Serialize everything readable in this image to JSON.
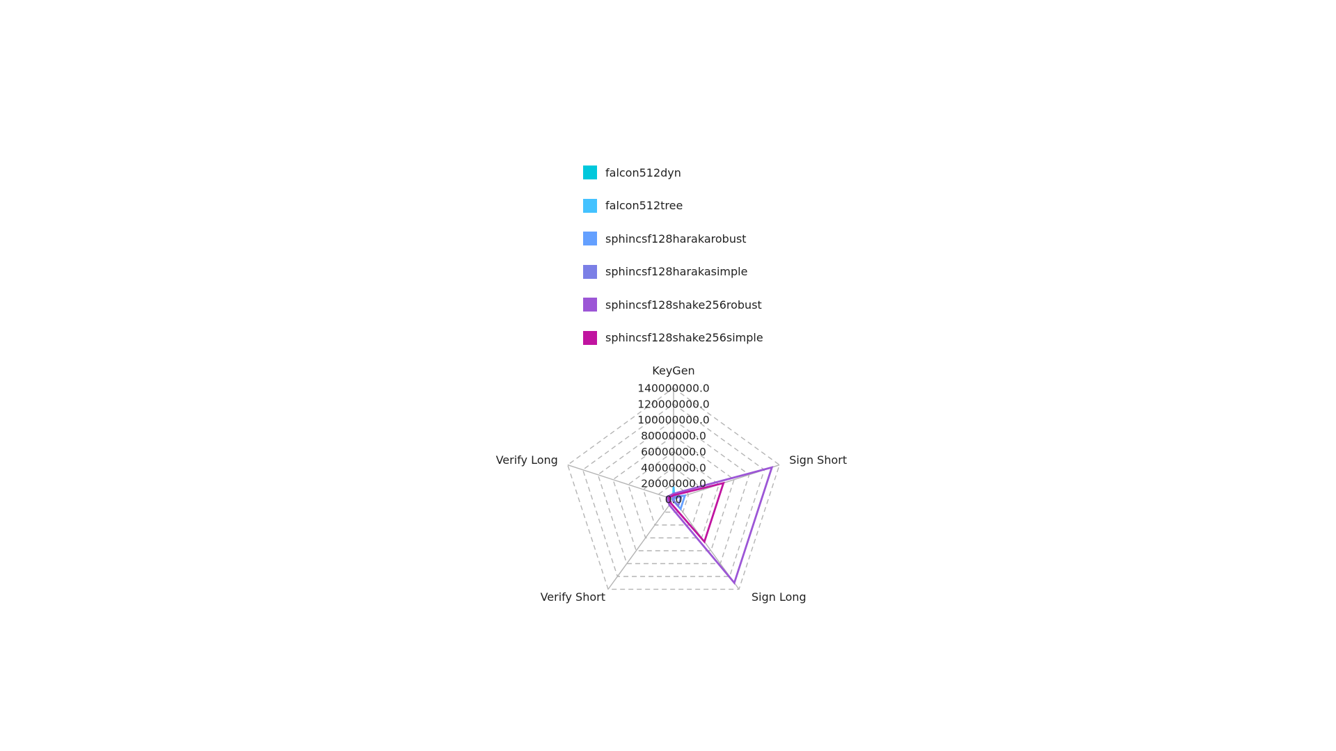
{
  "chart_data": {
    "type": "radar",
    "title": "",
    "axes": [
      "KeyGen",
      "Sign Short",
      "Sign Long",
      "Verify Short",
      "Verify Long"
    ],
    "radial_range": [
      0,
      140000000
    ],
    "radial_ticks": [
      "0.0",
      "20000000.0",
      "40000000.0",
      "60000000.0",
      "80000000.0",
      "100000000.0",
      "120000000.0",
      "140000000.0"
    ],
    "grid": "dashed",
    "legend_position": "top",
    "series": [
      {
        "name": "falcon512dyn",
        "color": "#00c8dc",
        "values": [
          14000000,
          1000000,
          1000000,
          500000,
          500000
        ]
      },
      {
        "name": "falcon512tree",
        "color": "#44c2ff",
        "values": [
          16000000,
          1200000,
          1200000,
          600000,
          600000
        ]
      },
      {
        "name": "sphincsf128harakarobust",
        "color": "#64a0ff",
        "values": [
          3000000,
          15000000,
          15000000,
          1500000,
          1500000
        ]
      },
      {
        "name": "sphincsf128harakasimple",
        "color": "#7b7fe6",
        "values": [
          2000000,
          10000000,
          10000000,
          1000000,
          1000000
        ]
      },
      {
        "name": "sphincsf128shake256robust",
        "color": "#9c56d6",
        "values": [
          7000000,
          130000000,
          130000000,
          9000000,
          9000000
        ]
      },
      {
        "name": "sphincsf128shake256simple",
        "color": "#c014a0",
        "values": [
          5000000,
          66000000,
          66000000,
          6000000,
          6000000
        ]
      }
    ]
  }
}
